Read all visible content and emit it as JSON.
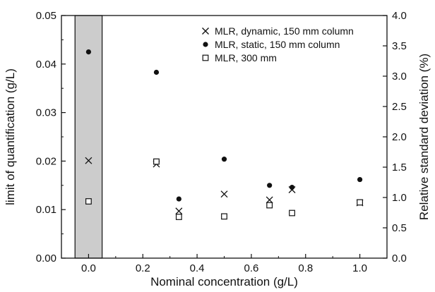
{
  "chart_data": {
    "type": "scatter",
    "xlabel": "Nominal concentration (g/L)",
    "ylabel": "limit of quantification (g/L)",
    "y2label": "Relative standard deviation (%)",
    "xlim": [
      -0.1,
      1.1
    ],
    "ylim": [
      0.0,
      0.05
    ],
    "y2lim": [
      0.0,
      4.0
    ],
    "x_ticks": [
      "0.0",
      "0.2",
      "0.4",
      "0.6",
      "0.8",
      "1.0"
    ],
    "y_ticks": [
      "0.00",
      "0.01",
      "0.02",
      "0.03",
      "0.04",
      "0.05"
    ],
    "y2_ticks": [
      "0.0",
      "0.5",
      "1.0",
      "1.5",
      "2.0",
      "2.5",
      "3.0",
      "3.5",
      "4.0"
    ],
    "shaded_region": {
      "x": [
        -0.05,
        0.05
      ],
      "color": "#cccccc"
    },
    "grid": false,
    "legend_position": "top-right",
    "series": [
      {
        "name": "MLR, dynamic, 150 mm column",
        "marker": "x",
        "x": [
          0.0,
          0.25,
          0.333,
          0.5,
          0.667,
          0.75,
          1.0
        ],
        "y": [
          0.0201,
          0.0194,
          0.0097,
          0.0132,
          0.012,
          0.0141,
          0.0114
        ]
      },
      {
        "name": "MLR, static, 150 mm column",
        "marker": "filled-circle",
        "x": [
          0.0,
          0.25,
          0.333,
          0.5,
          0.667,
          0.75,
          1.0
        ],
        "y": [
          0.0425,
          0.0383,
          0.0122,
          0.0204,
          0.015,
          0.0146,
          0.0162
        ]
      },
      {
        "name": "MLR, 300 mm",
        "marker": "open-square",
        "x": [
          0.0,
          0.25,
          0.333,
          0.5,
          0.667,
          0.75,
          1.0
        ],
        "y": [
          0.0117,
          0.0199,
          0.0085,
          0.0086,
          0.0109,
          0.0093,
          0.0115
        ]
      }
    ]
  }
}
